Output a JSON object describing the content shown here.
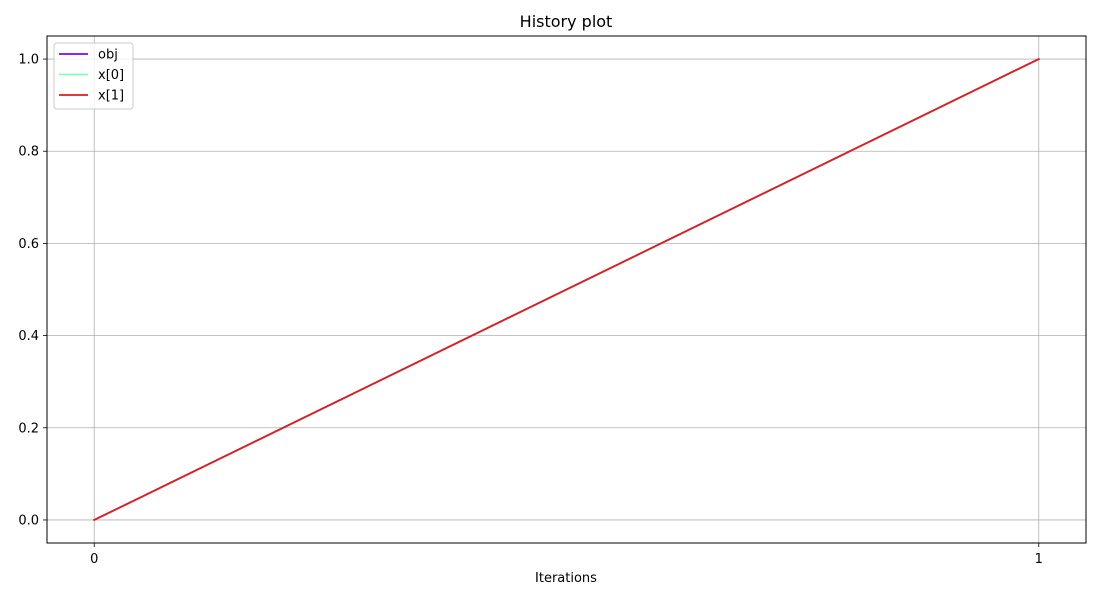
{
  "chart_data": {
    "type": "line",
    "title": "History plot",
    "xlabel": "Iterations",
    "ylabel": "",
    "xlim": [
      -0.05,
      1.05
    ],
    "ylim": [
      -0.05,
      1.05
    ],
    "x_ticks": [
      0,
      1
    ],
    "x_tick_labels": [
      "0",
      "1"
    ],
    "y_ticks": [
      0.0,
      0.2,
      0.4,
      0.6,
      0.8,
      1.0
    ],
    "y_tick_labels": [
      "0.0",
      "0.2",
      "0.4",
      "0.6",
      "0.8",
      "1.0"
    ],
    "grid": true,
    "legend_position": "top-left",
    "x": [
      0,
      1
    ],
    "series": [
      {
        "name": "obj",
        "color": "#7f00ff",
        "values": [
          0.0,
          1.0
        ]
      },
      {
        "name": "x[0]",
        "color": "#80ffb4",
        "values": [
          0.0,
          1.0
        ]
      },
      {
        "name": "x[1]",
        "color": "#e31a1c",
        "values": [
          0.0,
          1.0
        ]
      }
    ]
  }
}
